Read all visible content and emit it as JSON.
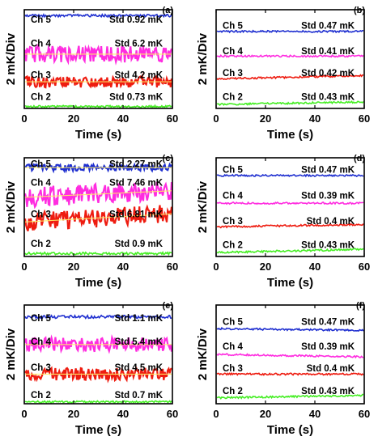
{
  "chart_data": [
    {
      "panel": "(a)",
      "type": "line",
      "xlabel": "Time (s)",
      "ylabel": "2 mK/Div",
      "xlim": [
        0,
        60
      ],
      "xticks": [
        0,
        20,
        40,
        60
      ],
      "series": [
        {
          "name": "Ch 5",
          "std": "Std 0.92 mK",
          "std_mk": 0.92,
          "color": "#1f2fd0"
        },
        {
          "name": "Ch 4",
          "std": "Std 6.2 mK",
          "std_mk": 6.2,
          "color": "#ff2ce0"
        },
        {
          "name": "Ch 3",
          "std": "Std 4.2 mK",
          "std_mk": 4.2,
          "color": "#ee1c10"
        },
        {
          "name": "Ch 2",
          "std": "Std 0.73 mK",
          "std_mk": 0.73,
          "color": "#44ee22"
        }
      ]
    },
    {
      "panel": "(b)",
      "type": "line",
      "xlabel": "Time (s)",
      "ylabel": "2 mK/Div",
      "xlim": [
        0,
        60
      ],
      "xticks": [
        0,
        20,
        40,
        60
      ],
      "series": [
        {
          "name": "Ch 5",
          "std": "Std 0.47 mK",
          "std_mk": 0.47,
          "color": "#1f2fd0"
        },
        {
          "name": "Ch 4",
          "std": "Std 0.41 mK",
          "std_mk": 0.41,
          "color": "#ff2ce0"
        },
        {
          "name": "Ch 3",
          "std": "Std 0.42 mK",
          "std_mk": 0.42,
          "color": "#ee1c10"
        },
        {
          "name": "Ch 2",
          "std": "Std 0.43 mK",
          "std_mk": 0.43,
          "color": "#44ee22"
        }
      ]
    },
    {
      "panel": "(c)",
      "type": "line",
      "xlabel": "Time (s)",
      "ylabel": "2 mK/Div",
      "xlim": [
        0,
        60
      ],
      "xticks": [
        0,
        20,
        40,
        60
      ],
      "series": [
        {
          "name": "Ch 5",
          "std": "Std 2.27 mK",
          "std_mk": 2.27,
          "color": "#1f2fd0"
        },
        {
          "name": "Ch 4",
          "std": "Std 7.46 mK",
          "std_mk": 7.46,
          "color": "#ff2ce0"
        },
        {
          "name": "Ch 3",
          "std": "Std 6.81 mK",
          "std_mk": 6.81,
          "color": "#ee1c10"
        },
        {
          "name": "Ch 2",
          "std": "Std 0.9 mK",
          "std_mk": 0.9,
          "color": "#44ee22"
        }
      ]
    },
    {
      "panel": "(d)",
      "type": "line",
      "xlabel": "Time (s)",
      "ylabel": "2 mK/Div",
      "xlim": [
        0,
        60
      ],
      "xticks": [
        0,
        20,
        40,
        60
      ],
      "series": [
        {
          "name": "Ch 5",
          "std": "Std 0.47 mK",
          "std_mk": 0.47,
          "color": "#1f2fd0"
        },
        {
          "name": "Ch 4",
          "std": "Std 0.39 mK",
          "std_mk": 0.39,
          "color": "#ff2ce0"
        },
        {
          "name": "Ch 3",
          "std": "Std 0.4 mK",
          "std_mk": 0.4,
          "color": "#ee1c10"
        },
        {
          "name": "Ch 2",
          "std": "Std 0.43 mK",
          "std_mk": 0.43,
          "color": "#44ee22"
        }
      ]
    },
    {
      "panel": "(e)",
      "type": "line",
      "xlabel": "Time (s)",
      "ylabel": "2 mK/Div",
      "xlim": [
        0,
        60
      ],
      "xticks": [
        0,
        20,
        40,
        60
      ],
      "series": [
        {
          "name": "Ch 5",
          "std": "Std 1.1 mK",
          "std_mk": 1.1,
          "color": "#1f2fd0"
        },
        {
          "name": "Ch 4",
          "std": "Std 5.4 mK",
          "std_mk": 5.4,
          "color": "#ff2ce0"
        },
        {
          "name": "Ch 3",
          "std": "Std 4.5 mK",
          "std_mk": 4.5,
          "color": "#ee1c10"
        },
        {
          "name": "Ch 2",
          "std": "Std 0.7 mK",
          "std_mk": 0.7,
          "color": "#44ee22"
        }
      ]
    },
    {
      "panel": "(f)",
      "type": "line",
      "xlabel": "Time (s)",
      "ylabel": "2 mK/Div",
      "xlim": [
        0,
        60
      ],
      "xticks": [
        0,
        20,
        40,
        60
      ],
      "series": [
        {
          "name": "Ch 5",
          "std": "Std 0.47 mK",
          "std_mk": 0.47,
          "color": "#1f2fd0"
        },
        {
          "name": "Ch 4",
          "std": "Std 0.39 mK",
          "std_mk": 0.39,
          "color": "#ff2ce0"
        },
        {
          "name": "Ch 3",
          "std": "Std 0.4 mK",
          "std_mk": 0.4,
          "color": "#ee1c10"
        },
        {
          "name": "Ch 2",
          "std": "Std 0.43 mK",
          "std_mk": 0.43,
          "color": "#44ee22"
        }
      ]
    }
  ]
}
